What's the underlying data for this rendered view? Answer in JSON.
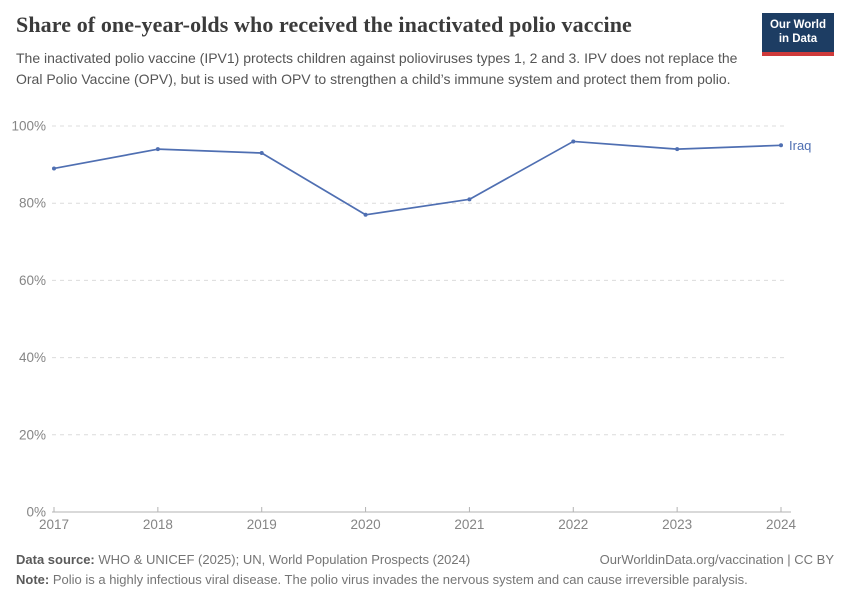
{
  "header": {
    "title": "Share of one-year-olds who received the inactivated polio vaccine",
    "subtitle": "The inactivated polio vaccine (IPV1) protects children against polioviruses types 1, 2 and 3. IPV does not replace the Oral Polio Vaccine (OPV), but is used with OPV to strengthen a child’s immune system and protect them from polio.",
    "logo": {
      "line1": "Our World",
      "line2": "in Data",
      "bg_color": "#1d3d63",
      "stripe_color": "#cf3a3a"
    }
  },
  "chart_data": {
    "type": "line",
    "title": "Share of one-year-olds who received the inactivated polio vaccine",
    "x": [
      2017,
      2018,
      2019,
      2020,
      2021,
      2022,
      2023,
      2024
    ],
    "series": [
      {
        "name": "Iraq",
        "values": [
          89,
          94,
          93,
          77,
          81,
          96,
          94,
          95
        ],
        "color": "#4f6fb2"
      }
    ],
    "xlabel": "",
    "ylabel": "",
    "ylim": [
      0,
      100
    ],
    "yticks": [
      0,
      20,
      40,
      60,
      80,
      100
    ],
    "ytick_suffix": "%",
    "grid": "horizontal-dashed",
    "legend": "line-end-label"
  },
  "footer": {
    "source_label": "Data source:",
    "source_text": " WHO & UNICEF (2025); UN, World Population Prospects (2024)",
    "rights": "OurWorldinData.org/vaccination | CC BY",
    "note_label": "Note:",
    "note_text": " Polio is a highly infectious viral disease. The polio virus invades the nervous system and can cause irreversible paralysis."
  }
}
